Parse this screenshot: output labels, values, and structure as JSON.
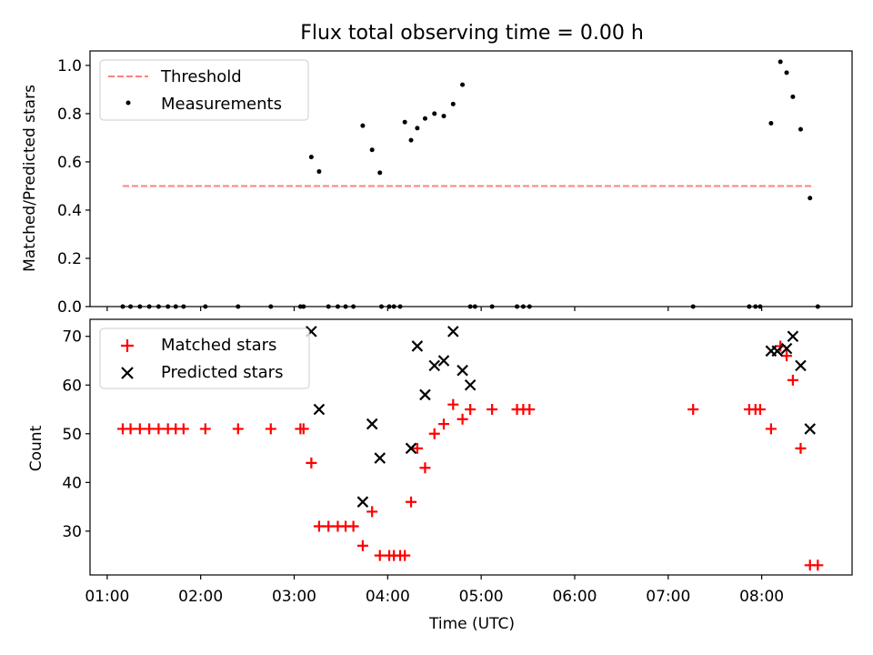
{
  "figure": {
    "title": "Flux total observing time = 0.00 h",
    "xlabel": "Time (UTC)",
    "x_ticks": [
      "01:00",
      "02:00",
      "03:00",
      "04:00",
      "05:00",
      "06:00",
      "07:00",
      "08:00"
    ]
  },
  "chart_data": [
    {
      "type": "scatter",
      "title": "Flux total observing time = 0.00 h",
      "xlabel": "",
      "ylabel": "Matched/Predicted stars",
      "xlim": [
        "00:49",
        "08:58"
      ],
      "ylim": [
        0,
        1.06
      ],
      "yticks": [
        "0.0",
        "0.2",
        "0.4",
        "0.6",
        "0.8",
        "1.0"
      ],
      "legend": {
        "placement": "upper-left",
        "entries": [
          "Threshold",
          "Measurements"
        ]
      },
      "series": [
        {
          "name": "Threshold",
          "kind": "dashed-line",
          "color": "#ff8080",
          "x": [
            "01:10",
            "08:33"
          ],
          "y": [
            0.5,
            0.5
          ]
        },
        {
          "name": "Measurements",
          "kind": "points",
          "color": "#000000",
          "x": [
            "01:10",
            "01:15",
            "01:21",
            "01:27",
            "01:33",
            "01:39",
            "01:44",
            "01:49",
            "02:03",
            "02:24",
            "02:45",
            "03:04",
            "03:06",
            "03:11",
            "03:16",
            "03:22",
            "03:28",
            "03:33",
            "03:38",
            "03:44",
            "03:50",
            "03:55",
            "03:56",
            "04:01",
            "04:04",
            "04:08",
            "04:11",
            "04:15",
            "04:19",
            "04:24",
            "04:30",
            "04:36",
            "04:42",
            "04:48",
            "04:53",
            "04:56",
            "05:07",
            "05:23",
            "05:27",
            "05:31",
            "07:16",
            "07:52",
            "07:56",
            "07:59",
            "08:06",
            "08:12",
            "08:16",
            "08:20",
            "08:25",
            "08:31",
            "08:36"
          ],
          "y": [
            0,
            0,
            0,
            0,
            0,
            0,
            0,
            0,
            0,
            0,
            0,
            0,
            0,
            0.62,
            0.56,
            0,
            0,
            0,
            0,
            0.75,
            0.65,
            0.555,
            0,
            0,
            0,
            0,
            0.765,
            0.69,
            0.74,
            0.78,
            0.8,
            0.79,
            0.84,
            0.92,
            0,
            0,
            0,
            0,
            0,
            0,
            0,
            0,
            0,
            0,
            0.76,
            1.015,
            0.97,
            0.87,
            0.735,
            0.45,
            0
          ]
        }
      ]
    },
    {
      "type": "scatter",
      "title": "",
      "xlabel": "Time (UTC)",
      "ylabel": "Count",
      "xlim": [
        "00:49",
        "08:58"
      ],
      "ylim": [
        21,
        73.5
      ],
      "yticks": [
        "30",
        "40",
        "50",
        "60",
        "70"
      ],
      "legend": {
        "placement": "upper-left",
        "entries": [
          "Matched stars",
          "Predicted stars"
        ]
      },
      "series": [
        {
          "name": "Matched stars",
          "marker": "plus",
          "color": "#ff0000",
          "x": [
            "01:10",
            "01:15",
            "01:21",
            "01:27",
            "01:33",
            "01:39",
            "01:44",
            "01:49",
            "02:03",
            "02:24",
            "02:45",
            "03:04",
            "03:06",
            "03:11",
            "03:16",
            "03:22",
            "03:28",
            "03:33",
            "03:38",
            "03:44",
            "03:50",
            "03:55",
            "04:01",
            "04:04",
            "04:08",
            "04:11",
            "04:15",
            "04:19",
            "04:24",
            "04:30",
            "04:36",
            "04:42",
            "04:48",
            "04:53",
            "05:07",
            "05:23",
            "05:27",
            "05:31",
            "07:16",
            "07:52",
            "07:56",
            "07:59",
            "08:06",
            "08:12",
            "08:16",
            "08:20",
            "08:25",
            "08:31",
            "08:36"
          ],
          "y": [
            51,
            51,
            51,
            51,
            51,
            51,
            51,
            51,
            51,
            51,
            51,
            51,
            51,
            44,
            31,
            31,
            31,
            31,
            31,
            27,
            34,
            25,
            25,
            25,
            25,
            25,
            36,
            47,
            43,
            50,
            52,
            56,
            53,
            55,
            55,
            55,
            55,
            55,
            55,
            55,
            55,
            55,
            51,
            68,
            66,
            61,
            47,
            23,
            23
          ]
        },
        {
          "name": "Predicted stars",
          "marker": "x",
          "color": "#000000",
          "x": [
            "03:11",
            "03:16",
            "03:44",
            "03:50",
            "03:55",
            "04:15",
            "04:19",
            "04:24",
            "04:30",
            "04:36",
            "04:42",
            "04:48",
            "04:53",
            "08:06",
            "08:10",
            "08:16",
            "08:20",
            "08:25",
            "08:31"
          ],
          "y": [
            71,
            55,
            36,
            52,
            45,
            47,
            68,
            58,
            64,
            65,
            71,
            63,
            60,
            67,
            67,
            67.5,
            70,
            64,
            51
          ]
        }
      ]
    }
  ]
}
